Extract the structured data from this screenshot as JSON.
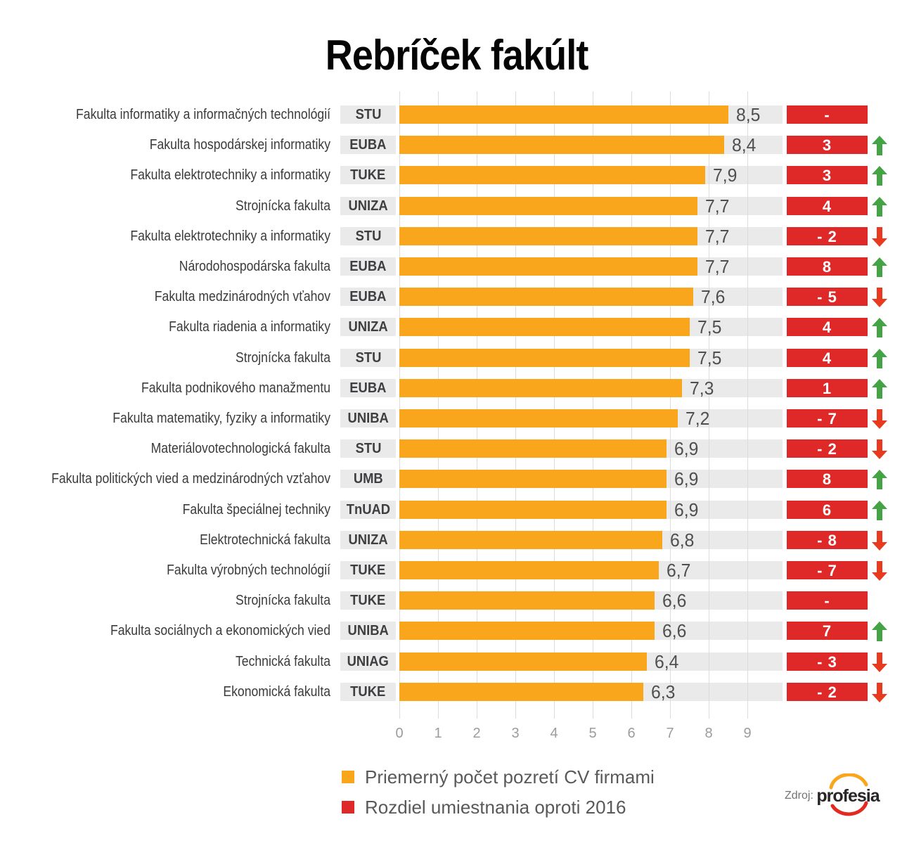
{
  "title": "Rebríček fakúlt",
  "legend": [
    {
      "label": "Priemerný počet pozretí CV firmami",
      "color": "#f9a61d"
    },
    {
      "label": "Rozdiel umiestnania oproti 2016",
      "color": "#df2929"
    }
  ],
  "source": {
    "label": "Zdroj:",
    "brand": "profesia"
  },
  "colors": {
    "bar": "#f9a61d",
    "badge": "#df2929",
    "track": "#eaeaea",
    "gridline": "#dcdcdc",
    "up_arrow": "#44a344",
    "down_arrow": "#e83a1e"
  },
  "chart_data": {
    "type": "bar",
    "orientation": "horizontal",
    "title": "Rebríček fakúlt",
    "xlabel": "",
    "ylabel": "",
    "xlim": [
      0,
      9.9
    ],
    "x_ticks": [
      0,
      1,
      2,
      3,
      4,
      5,
      6,
      7,
      8,
      9
    ],
    "grid": true,
    "legend_position": "bottom",
    "series": [
      {
        "name": "Priemerný počet pozretí CV firmami",
        "color": "#f9a61d"
      },
      {
        "name": "Rozdiel umiestnania oproti 2016",
        "color": "#df2929"
      }
    ],
    "rows": [
      {
        "label": "Fakulta informatiky a informačných technológií",
        "org": "STU",
        "value": 8.5,
        "value_label": "8,5",
        "change_label": "-",
        "trend": "none"
      },
      {
        "label": "Fakulta hospodárskej informatiky",
        "org": "EUBA",
        "value": 8.4,
        "value_label": "8,4",
        "change_label": "3",
        "trend": "up"
      },
      {
        "label": "Fakulta elektrotechniky a informatiky",
        "org": "TUKE",
        "value": 7.9,
        "value_label": "7,9",
        "change_label": "3",
        "trend": "up"
      },
      {
        "label": "Strojnícka fakulta",
        "org": "UNIZA",
        "value": 7.7,
        "value_label": "7,7",
        "change_label": "4",
        "trend": "up"
      },
      {
        "label": "Fakulta elektrotechniky a informatiky",
        "org": "STU",
        "value": 7.7,
        "value_label": "7,7",
        "change_label": "- 2",
        "trend": "down"
      },
      {
        "label": "Národohospodárska fakulta",
        "org": "EUBA",
        "value": 7.7,
        "value_label": "7,7",
        "change_label": "8",
        "trend": "up"
      },
      {
        "label": "Fakulta medzinárodných vťahov",
        "org": "EUBA",
        "value": 7.6,
        "value_label": "7,6",
        "change_label": "- 5",
        "trend": "down"
      },
      {
        "label": "Fakulta riadenia a informatiky",
        "org": "UNIZA",
        "value": 7.5,
        "value_label": "7,5",
        "change_label": "4",
        "trend": "up"
      },
      {
        "label": "Strojnícka fakulta",
        "org": "STU",
        "value": 7.5,
        "value_label": "7,5",
        "change_label": "4",
        "trend": "up"
      },
      {
        "label": "Fakulta podnikového manažmentu",
        "org": "EUBA",
        "value": 7.3,
        "value_label": "7,3",
        "change_label": "1",
        "trend": "up"
      },
      {
        "label": "Fakulta matematiky, fyziky a informatiky",
        "org": "UNIBA",
        "value": 7.2,
        "value_label": "7,2",
        "change_label": "- 7",
        "trend": "down"
      },
      {
        "label": "Materiálovotechnologická fakulta",
        "org": "STU",
        "value": 6.9,
        "value_label": "6,9",
        "change_label": "- 2",
        "trend": "down"
      },
      {
        "label": "Fakulta politických vied a medzinárodných vzťahov",
        "org": "UMB",
        "value": 6.9,
        "value_label": "6,9",
        "change_label": "8",
        "trend": "up"
      },
      {
        "label": "Fakulta špeciálnej techniky",
        "org": "TnUAD",
        "value": 6.9,
        "value_label": "6,9",
        "change_label": "6",
        "trend": "up"
      },
      {
        "label": "Elektrotechnická fakulta",
        "org": "UNIZA",
        "value": 6.8,
        "value_label": "6,8",
        "change_label": "- 8",
        "trend": "down"
      },
      {
        "label": "Fakulta výrobných technológií",
        "org": "TUKE",
        "value": 6.7,
        "value_label": "6,7",
        "change_label": "- 7",
        "trend": "down"
      },
      {
        "label": "Strojnícka fakulta",
        "org": "TUKE",
        "value": 6.6,
        "value_label": "6,6",
        "change_label": "-",
        "trend": "none"
      },
      {
        "label": "Fakulta sociálnych a ekonomických vied",
        "org": "UNIBA",
        "value": 6.6,
        "value_label": "6,6",
        "change_label": "7",
        "trend": "up"
      },
      {
        "label": "Technická fakulta",
        "org": "UNIAG",
        "value": 6.4,
        "value_label": "6,4",
        "change_label": "- 3",
        "trend": "down"
      },
      {
        "label": "Ekonomická fakulta",
        "org": "TUKE",
        "value": 6.3,
        "value_label": "6,3",
        "change_label": "- 2",
        "trend": "down"
      }
    ]
  }
}
